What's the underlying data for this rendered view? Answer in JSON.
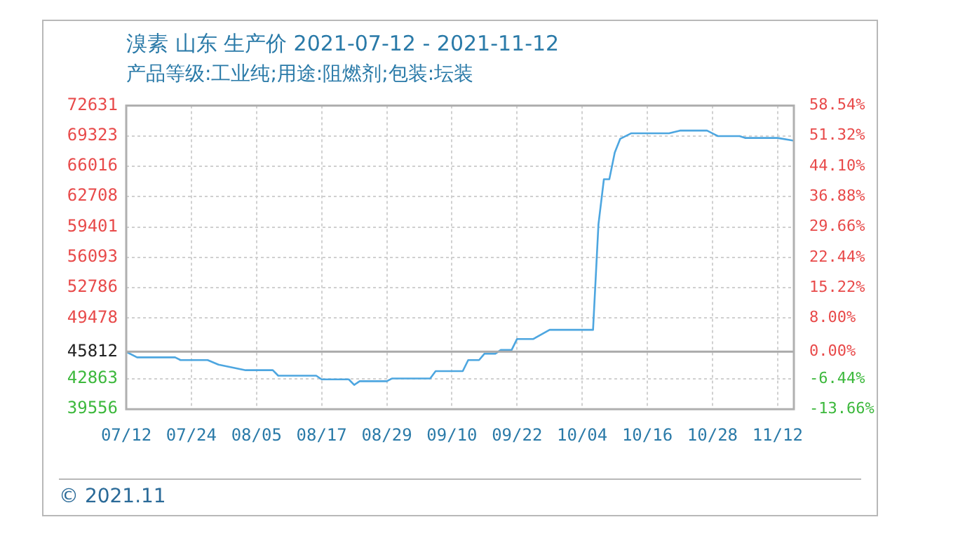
{
  "chart_data": {
    "type": "line",
    "title": "溴素 山东 生产价 2021-07-12 - 2021-11-12",
    "subtitle": "产品等级:工业纯;用途:阻燃剂;包装:坛装",
    "annotations": [
      "© 2021.11"
    ],
    "x": [
      "2021-07-12",
      "2021-07-14",
      "2021-07-21",
      "2021-07-22",
      "2021-07-27",
      "2021-07-29",
      "2021-08-03",
      "2021-08-08",
      "2021-08-09",
      "2021-08-16",
      "2021-08-17",
      "2021-08-22",
      "2021-08-23",
      "2021-08-24",
      "2021-08-29",
      "2021-08-30",
      "2021-09-06",
      "2021-09-07",
      "2021-09-12",
      "2021-09-13",
      "2021-09-15",
      "2021-09-16",
      "2021-09-18",
      "2021-09-19",
      "2021-09-21",
      "2021-09-22",
      "2021-09-25",
      "2021-09-28",
      "2021-10-06",
      "2021-10-07",
      "2021-10-08",
      "2021-10-09",
      "2021-10-10",
      "2021-10-11",
      "2021-10-13",
      "2021-10-20",
      "2021-10-22",
      "2021-10-27",
      "2021-10-29",
      "2021-11-02",
      "2021-11-03",
      "2021-11-09",
      "2021-11-12"
    ],
    "series": [
      {
        "color": "#4da6e0",
        "values": [
          45800,
          45200,
          45200,
          44900,
          44900,
          44400,
          43800,
          43800,
          43200,
          43200,
          42800,
          42800,
          42200,
          42600,
          42600,
          42900,
          42900,
          43700,
          43700,
          44900,
          44900,
          45600,
          45600,
          46000,
          46000,
          47200,
          47200,
          48200,
          48200,
          59700,
          64600,
          64600,
          67500,
          69000,
          69600,
          69600,
          69900,
          69900,
          69300,
          69300,
          69100,
          69100,
          68800
        ]
      }
    ],
    "xlim": [
      "2021-07-12",
      "2021-11-12"
    ],
    "xticks": [
      {
        "value": "2021-07-12",
        "label": "07/12"
      },
      {
        "value": "2021-07-24",
        "label": "07/24"
      },
      {
        "value": "2021-08-05",
        "label": "08/05"
      },
      {
        "value": "2021-08-17",
        "label": "08/17"
      },
      {
        "value": "2021-08-29",
        "label": "08/29"
      },
      {
        "value": "2021-09-10",
        "label": "09/10"
      },
      {
        "value": "2021-09-22",
        "label": "09/22"
      },
      {
        "value": "2021-10-04",
        "label": "10/04"
      },
      {
        "value": "2021-10-16",
        "label": "10/16"
      },
      {
        "value": "2021-10-28",
        "label": "10/28"
      },
      {
        "value": "2021-11-09",
        "label": "11/12"
      }
    ],
    "ylim": [
      39556,
      72631
    ],
    "yticks": [
      39556,
      42863,
      45812,
      49478,
      52786,
      56093,
      59401,
      62708,
      66016,
      69323,
      72631
    ],
    "y2lim": [
      -13.66,
      58.54
    ],
    "y2ticks": [
      {
        "value": -13.66,
        "label": "-13.66%"
      },
      {
        "value": -6.44,
        "label": "-6.44%"
      },
      {
        "value": 0,
        "label": "0.00%"
      },
      {
        "value": 8,
        "label": "8.00%"
      },
      {
        "value": 15.22,
        "label": "15.22%"
      },
      {
        "value": 22.44,
        "label": "22.44%"
      },
      {
        "value": 29.66,
        "label": "29.66%"
      },
      {
        "value": 36.88,
        "label": "36.88%"
      },
      {
        "value": 44.1,
        "label": "44.10%"
      },
      {
        "value": 51.32,
        "label": "51.32%"
      },
      {
        "value": 58.54,
        "label": "58.54%"
      }
    ],
    "ref_lines": [
      {
        "axis": "y",
        "value": 45812,
        "color": "#aaaaaa"
      }
    ],
    "grid": true,
    "legend": false,
    "marker": "none",
    "line_style": "solid"
  }
}
